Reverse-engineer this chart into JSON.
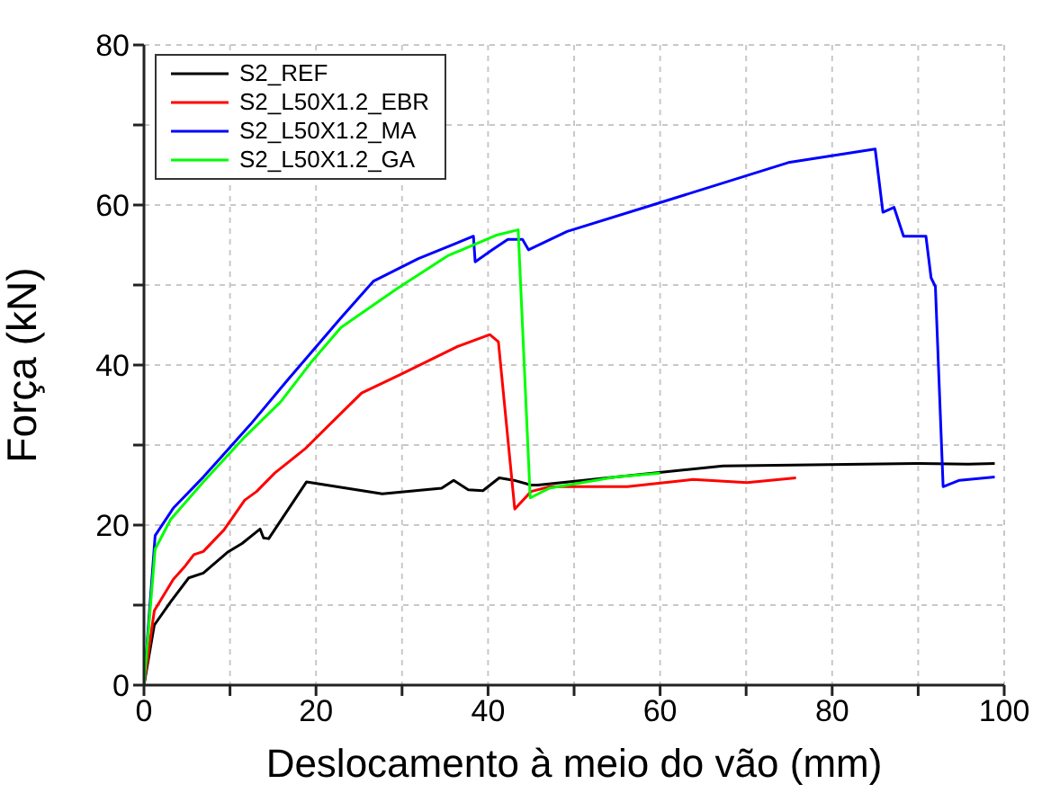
{
  "chart_data": {
    "type": "line",
    "xlabel": "Deslocamento à meio do vão (mm)",
    "ylabel": "Força (kN)",
    "xlim": [
      0,
      100
    ],
    "xticks": [
      0,
      {
        "value": 10,
        "label": null
      },
      20,
      {
        "value": 30,
        "label": null
      },
      40,
      {
        "value": 50,
        "label": null
      },
      60,
      {
        "value": 70,
        "label": null
      },
      80,
      {
        "value": 90,
        "label": null
      },
      100
    ],
    "ylim": [
      0,
      80
    ],
    "yticks": [
      0,
      {
        "value": 10,
        "label": null
      },
      20,
      {
        "value": 30,
        "label": null
      },
      40,
      {
        "value": 50,
        "label": null
      },
      60,
      {
        "value": 70,
        "label": null
      },
      80
    ],
    "grid": true,
    "legend": "top left",
    "marker": "none",
    "line_style": "solid",
    "series": [
      {
        "name": "S2_REF",
        "color": "#000000",
        "x": [
          0,
          1.2,
          3.1,
          5.2,
          6.9,
          9.7,
          11.4,
          13.5,
          13.9,
          14.5,
          18.9,
          27.7,
          34.6,
          36,
          37.7,
          39.4,
          41.3,
          43,
          45,
          45.8,
          67.3,
          90.2,
          95.8,
          98.9
        ],
        "values": [
          0,
          7.5,
          10.4,
          13.4,
          14,
          16.6,
          17.7,
          19.5,
          18.4,
          18.3,
          25.4,
          23.9,
          24.6,
          25.6,
          24.4,
          24.3,
          25.9,
          25.6,
          25,
          25,
          27.4,
          27.7,
          27.6,
          27.7
        ]
      },
      {
        "name": "S2_L50X1.2_EBR",
        "color": "#ff0000",
        "x": [
          0,
          1.2,
          3.4,
          4.8,
          5.8,
          6.9,
          9.3,
          11.7,
          13.1,
          15.2,
          18.7,
          21.8,
          25.3,
          29.8,
          36.4,
          40.2,
          41.2,
          43.1,
          45,
          47.2,
          56.2,
          63.8,
          70.1,
          75.8
        ],
        "values": [
          0,
          9.3,
          13.2,
          14.9,
          16.3,
          16.7,
          19.4,
          23.1,
          24.2,
          26.5,
          29.5,
          32.8,
          36.5,
          38.8,
          42.3,
          43.8,
          42.9,
          22,
          24.2,
          24.8,
          24.8,
          25.7,
          25.3,
          25.9
        ]
      },
      {
        "name": "S2_L50X1.2_MA",
        "color": "#0000ff",
        "x": [
          0,
          1.3,
          3.4,
          6.9,
          12.4,
          16.6,
          22.9,
          26.7,
          31.9,
          38.3,
          38.5,
          40.5,
          42.3,
          44,
          44.7,
          49.2,
          59.7,
          74.9,
          85,
          85.9,
          87.2,
          88.3,
          90.9,
          91.5,
          92,
          92.9,
          94.8,
          98.9
        ],
        "values": [
          0,
          18.7,
          22.1,
          26,
          32.6,
          38,
          45.9,
          50.5,
          53.3,
          56.1,
          52.9,
          54.4,
          55.7,
          55.7,
          54.4,
          56.7,
          60.2,
          65.3,
          67,
          59.1,
          59.7,
          56.1,
          56.1,
          50.9,
          49.8,
          24.8,
          25.6,
          26
        ]
      },
      {
        "name": "S2_L50X1.2_GA",
        "color": "#00ff00",
        "x": [
          0,
          1.3,
          3.1,
          6.9,
          11.7,
          15.9,
          19.4,
          22.9,
          29.5,
          35.4,
          40.9,
          43.5,
          44.9,
          47.1,
          54.8,
          60
        ],
        "values": [
          0,
          17,
          20.7,
          25.4,
          31,
          35.4,
          40.3,
          44.7,
          49.6,
          53.7,
          56.2,
          56.9,
          23.4,
          24.6,
          26,
          26.5
        ]
      }
    ]
  }
}
